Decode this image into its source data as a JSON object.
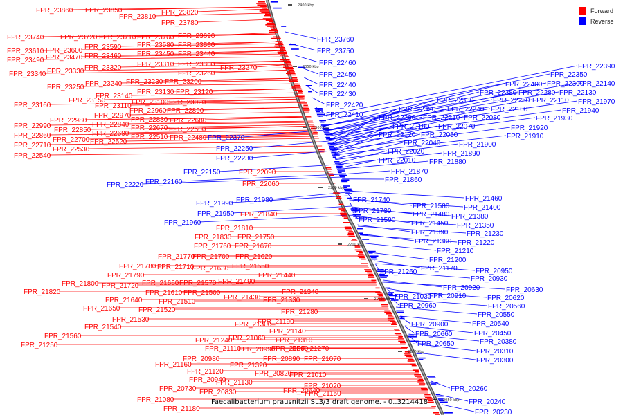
{
  "legend": {
    "forward": {
      "label": "Forward",
      "color": "#ff0000"
    },
    "reverse": {
      "label": "Reverse",
      "color": "#0000ff"
    }
  },
  "caption": "Faecalibacterium prausnitzii SL3/3 draft genome. - 0..3214418",
  "scale_ticks": [
    "2400 kbp",
    "2350 kbp",
    "2300 kbp",
    "2250 kbp",
    "2200 kbp",
    "2150 kbp",
    "2100 kbp",
    "2050 kbp"
  ],
  "forward_labels": [
    "FPR_23860",
    "FPR_23850",
    "FPR_23820",
    "FPR_23810",
    "FPR_23780",
    "FPR_23740",
    "FPR_23720",
    "FPR_23710",
    "FPR_23700",
    "FPR_23690",
    "FPR_23580",
    "FPR_23560",
    "FPR_23610",
    "FPR_23600",
    "FPR_23590",
    "FPR_23450",
    "FPR_23440",
    "FPR_23490",
    "FPR_23470",
    "FPR_23460",
    "FPR_23310",
    "FPR_23300",
    "FPR_23340",
    "FPR_23330",
    "FPR_23320",
    "FPR_23270",
    "FPR_23260",
    "FPR_23250",
    "FPR_23240",
    "FPR_23230",
    "FPR_23200",
    "FPR_23130",
    "FPR_23120",
    "FPR_23140",
    "FPR_23160",
    "FPR_23150",
    "FPR_23110",
    "FPR_23100",
    "FPR_23020",
    "FPR_22960",
    "FPR_22890",
    "FPR_22970",
    "FPR_22980",
    "FPR_22830",
    "FPR_22680",
    "FPR_22990",
    "FPR_22850",
    "FPR_22840",
    "FPR_22670",
    "FPR_22500",
    "FPR_22860",
    "FPR_22690",
    "FPR_22710",
    "FPR_22700",
    "FPR_22510",
    "FPR_22480",
    "FPR_22520",
    "FPR_22530",
    "FPR_22540",
    "FPR_22090",
    "FPR_22060",
    "FPR_21840",
    "FPR_21810",
    "FPR_21830",
    "FPR_21750",
    "FPR_21760",
    "FPR_21670",
    "FPR_21770",
    "FPR_21700",
    "FPR_21620",
    "FPR_21780",
    "FPR_21710",
    "FPR_21630",
    "FPR_21550",
    "FPR_21790",
    "FPR_21800",
    "FPR_21720",
    "FPR_21660",
    "FPR_21570",
    "FPR_21490",
    "FPR_21440",
    "FPR_21820",
    "FPR_21610",
    "FPR_21500",
    "FPR_21640",
    "FPR_21510",
    "FPR_21650",
    "FPR_21520",
    "FPR_21340",
    "FPR_21430",
    "FPR_21330",
    "FPR_21530",
    "FPR_21280",
    "FPR_21540",
    "FPR_21300",
    "FPR_21190",
    "FPR_21140",
    "FPR_21560",
    "FPR_21240",
    "FPR_21060",
    "FPR_21310",
    "FPR_21250",
    "FPR_21110",
    "FPR_20990",
    "FPR_21600",
    "FPR_21270",
    "FPR_20980",
    "FPR_20890",
    "FPR_21070",
    "FPR_21320",
    "FPR_21160",
    "FPR_21120",
    "FPR_20940",
    "FPR_20820",
    "FPR_21010",
    "FPR_21130",
    "FPR_21020",
    "FPR_20730",
    "FPR_20830",
    "FPR_20640",
    "FPR_21150",
    "FPR_21080",
    "FPR_21180"
  ],
  "reverse_labels": [
    "FPR_23760",
    "FPR_23750",
    "FPR_22460",
    "FPR_22450",
    "FPR_22440",
    "FPR_22430",
    "FPR_22420",
    "FPR_22410",
    "FPR_22390",
    "FPR_22350",
    "FPR_22400",
    "FPR_22300",
    "FPR_22140",
    "FPR_22380",
    "FPR_22280",
    "FPR_22130",
    "FPR_22330",
    "FPR_22260",
    "FPR_22110",
    "FPR_22320",
    "FPR_22240",
    "FPR_22100",
    "FPR_21970",
    "FPR_22290",
    "FPR_22210",
    "FPR_22080",
    "FPR_21940",
    "FPR_22190",
    "FPR_22070",
    "FPR_21930",
    "FPR_22370",
    "FPR_22120",
    "FPR_22050",
    "FPR_21920",
    "FPR_22040",
    "FPR_21910",
    "FPR_22250",
    "FPR_22020",
    "FPR_21900",
    "FPR_22230",
    "FPR_21890",
    "FPR_22010",
    "FPR_21880",
    "FPR_22150",
    "FPR_21870",
    "FPR_22160",
    "FPR_22220",
    "FPR_21860",
    "FPR_21980",
    "FPR_21740",
    "FPR_21460",
    "FPR_21990",
    "FPR_21580",
    "FPR_21400",
    "FPR_21730",
    "FPR_21480",
    "FPR_21380",
    "FPR_21950",
    "FPR_21590",
    "FPR_21450",
    "FPR_21350",
    "FPR_21960",
    "FPR_21390",
    "FPR_21230",
    "FPR_21360",
    "FPR_21220",
    "FPR_21210",
    "FPR_21200",
    "FPR_21260",
    "FPR_21170",
    "FPR_20950",
    "FPR_20930",
    "FPR_20920",
    "FPR_20630",
    "FPR_21030",
    "FPR_20910",
    "FPR_20620",
    "FPR_20960",
    "FPR_20560",
    "FPR_20550",
    "FPR_20900",
    "FPR_20540",
    "FPR_20660",
    "FPR_20450",
    "FPR_20650",
    "FPR_20380",
    "FPR_20310",
    "FPR_20300",
    "FPR_20260",
    "FPR_20240",
    "FPR_20230"
  ]
}
